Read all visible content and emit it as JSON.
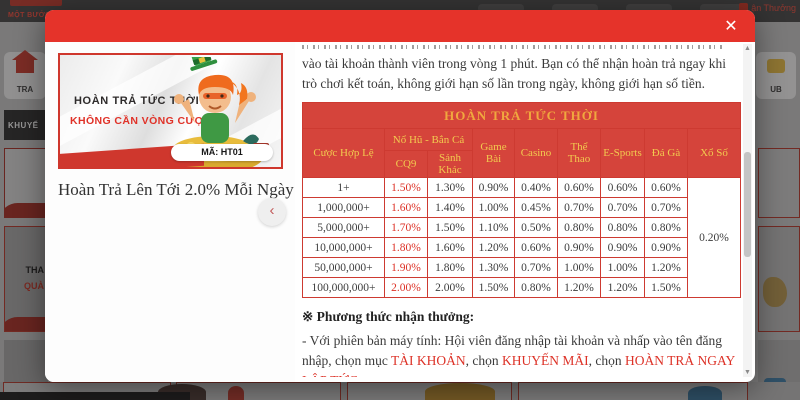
{
  "background": {
    "logo_tagline": "MỘT BƯỚC LÀM GIÀU",
    "reward_label": "ận Thưởng",
    "nav_home_label": "TRA",
    "promo_section_label": "KHUYẾ",
    "card_text_1": "THA",
    "card_text_2": "QUÀ",
    "club_label": "UB"
  },
  "modal": {
    "close_icon": "✕",
    "nav_prev_icon": "‹",
    "promo": {
      "image_title": "HOÀN TRẢ TỨC THỜI",
      "image_subtitle": "KHÔNG CẦN VÒNG CƯỢC",
      "image_code": "MÃ: HT01",
      "caption": "Hoàn Trả Lên Tới 2.0% Mỗi Ngày"
    },
    "intro_text": "vào tài khoản thành viên trong vòng 1 phút. Bạn có thể nhận hoàn trả ngay khi trò chơi kết toán, không giới hạn số lần trong ngày, không giới hạn số tiền.",
    "table": {
      "title": "HOÀN TRẢ TỨC THỜI",
      "col_bet": "Cược Hợp Lệ",
      "group_nohu": "Nổ Hũ - Bắn Cá",
      "sub_cq9": "CQ9",
      "sub_other": "Sảnh Khác",
      "cols": [
        "Game Bài",
        "Casino",
        "Thể Thao",
        "E-Sports",
        "Đá Gà",
        "Xổ Số"
      ],
      "xoso_value": "0.20%",
      "rows": [
        {
          "bet": "1+",
          "cq9": "1.50%",
          "sanh_khac": "1.30%",
          "game_bai": "0.90%",
          "casino": "0.40%",
          "the_thao": "0.60%",
          "esports": "0.60%",
          "da_ga": "0.60%"
        },
        {
          "bet": "1,000,000+",
          "cq9": "1.60%",
          "sanh_khac": "1.40%",
          "game_bai": "1.00%",
          "casino": "0.45%",
          "the_thao": "0.70%",
          "esports": "0.70%",
          "da_ga": "0.70%"
        },
        {
          "bet": "5,000,000+",
          "cq9": "1.70%",
          "sanh_khac": "1.50%",
          "game_bai": "1.10%",
          "casino": "0.50%",
          "the_thao": "0.80%",
          "esports": "0.80%",
          "da_ga": "0.80%"
        },
        {
          "bet": "10,000,000+",
          "cq9": "1.80%",
          "sanh_khac": "1.60%",
          "game_bai": "1.20%",
          "casino": "0.60%",
          "the_thao": "0.90%",
          "esports": "0.90%",
          "da_ga": "0.90%"
        },
        {
          "bet": "50,000,000+",
          "cq9": "1.90%",
          "sanh_khac": "1.80%",
          "game_bai": "1.30%",
          "casino": "0.70%",
          "the_thao": "1.00%",
          "esports": "1.00%",
          "da_ga": "1.20%"
        },
        {
          "bet": "100,000,000+",
          "cq9": "2.00%",
          "sanh_khac": "2.00%",
          "game_bai": "1.50%",
          "casino": "0.80%",
          "the_thao": "1.20%",
          "esports": "1.20%",
          "da_ga": "1.50%"
        }
      ]
    },
    "method_heading": "※ Phương thức nhận thưởng:",
    "method_prefix": "- Với phiên bản máy tính: Hội viên đăng nhập tài khoản và nhấp vào tên đăng nhập, chọn mục ",
    "link_account": "TÀI KHOẢN",
    "sep1": ", chọn ",
    "link_promo": "KHUYẾN MÃI",
    "sep2": ", chọn ",
    "link_rebate": "HOÀN TRẢ NGAY LẬP TỨC",
    "period": "."
  }
}
